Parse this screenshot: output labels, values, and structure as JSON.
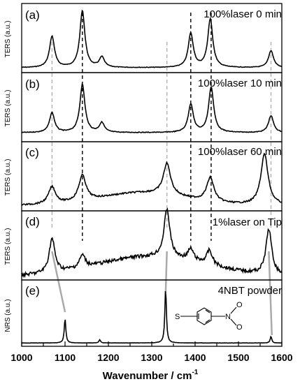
{
  "chart_data": {
    "type": "line",
    "xlabel_main": "Wavenumber / cm",
    "xlabel_sup": "-1",
    "xlim": [
      1000,
      1600
    ],
    "xticks": [
      "1000",
      "1100",
      "1200",
      "1300",
      "1400",
      "1500",
      "1600"
    ],
    "panels": [
      {
        "label": "(a)",
        "condition": "100%laser 0 min",
        "ylabel": "TERS (a.u.)",
        "peaks": [
          [
            1070,
            0.55
          ],
          [
            1140,
            1.0
          ],
          [
            1185,
            0.18
          ],
          [
            1390,
            0.6
          ],
          [
            1435,
            0.85
          ],
          [
            1575,
            0.3
          ]
        ]
      },
      {
        "label": "(b)",
        "condition": "100%laser 10 min",
        "ylabel": "TERS (a.u.)",
        "peaks": [
          [
            1070,
            0.35
          ],
          [
            1140,
            0.85
          ],
          [
            1185,
            0.17
          ],
          [
            1390,
            0.5
          ],
          [
            1437,
            0.8
          ],
          [
            1575,
            0.3
          ]
        ]
      },
      {
        "label": "(c)",
        "condition": "100%laser 60 min",
        "ylabel": "TERS (a.u.)",
        "peaks": [
          [
            1070,
            0.3
          ],
          [
            1140,
            0.45
          ],
          [
            1335,
            0.55
          ],
          [
            1435,
            0.42
          ],
          [
            1560,
            0.9
          ]
        ]
      },
      {
        "label": "(d)",
        "condition": "1%laser on Tip",
        "ylabel": "TERS (a.u.)",
        "peaks": [
          [
            1070,
            0.6
          ],
          [
            1140,
            0.22
          ],
          [
            1335,
            0.85
          ],
          [
            1390,
            0.2
          ],
          [
            1433,
            0.25
          ],
          [
            1570,
            0.8
          ]
        ]
      },
      {
        "label": "(e)",
        "condition": "4NBT powder",
        "ylabel": "NRS (a.u.)",
        "peaks": [
          [
            1100,
            0.45
          ],
          [
            1180,
            0.06
          ],
          [
            1332,
            1.0
          ],
          [
            1575,
            0.12
          ]
        ]
      }
    ],
    "black_dashed_lines": [
      1140,
      1390,
      1437
    ],
    "gray_dashed_lines": [
      1070,
      1335,
      1575
    ],
    "molecule": {
      "left_atom": "S",
      "right_atom": "N",
      "oxygen_top": "O",
      "oxygen_bottom": "O"
    },
    "colors": {
      "trace": "#000000",
      "gray_guide": "#aaaaaa"
    }
  }
}
